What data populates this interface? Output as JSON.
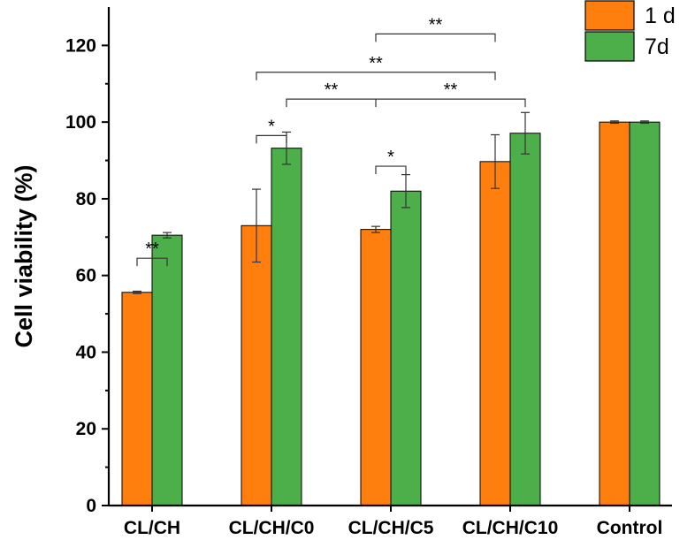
{
  "chart_data": {
    "type": "bar",
    "ylabel": "Cell viability (%)",
    "xlabel": "",
    "ylim": [
      0,
      130
    ],
    "yticks": [
      0,
      20,
      40,
      60,
      80,
      100,
      120
    ],
    "categories": [
      "CL/CH",
      "CL/CH/C0",
      "CL/CH/C5",
      "CL/CH/C10",
      "Control"
    ],
    "series": [
      {
        "name": "1 d",
        "color": "#ff7f0e",
        "values": [
          55.6,
          73.0,
          72.0,
          89.7,
          100.0
        ],
        "errors": [
          0.3,
          9.5,
          0.8,
          7.0,
          0.3
        ]
      },
      {
        "name": "7d",
        "color": "#4daf4a",
        "values": [
          70.5,
          93.2,
          82.0,
          97.1,
          100.0
        ],
        "errors": [
          0.7,
          4.2,
          4.3,
          5.4,
          0.3
        ]
      }
    ],
    "legend": "top-right",
    "grid": false,
    "significance": [
      {
        "label": "**",
        "from": {
          "category": 0,
          "series": 0
        },
        "to": {
          "category": 0,
          "series": 1
        },
        "y": 64.5
      },
      {
        "label": "*",
        "from": {
          "category": 1,
          "series": 0
        },
        "to": {
          "category": 1,
          "series": 1
        },
        "y": 96.5
      },
      {
        "label": "*",
        "from": {
          "category": 2,
          "series": 0
        },
        "to": {
          "category": 2,
          "series": 1
        },
        "y": 88.5
      },
      {
        "label": "**",
        "from": {
          "category": 1,
          "series": 1
        },
        "to": {
          "category": 3,
          "series": 1
        },
        "y": 106.0,
        "center_tick": {
          "category": 2,
          "series": 0
        }
      },
      {
        "label": "**",
        "from": {
          "category": 1,
          "series": 0
        },
        "to": {
          "category": 3,
          "series": 0
        },
        "y": 113.0
      },
      {
        "label": "**",
        "from": {
          "category": 2,
          "series": 0
        },
        "to": {
          "category": 3,
          "series": 0
        },
        "y": 123.0
      }
    ]
  }
}
